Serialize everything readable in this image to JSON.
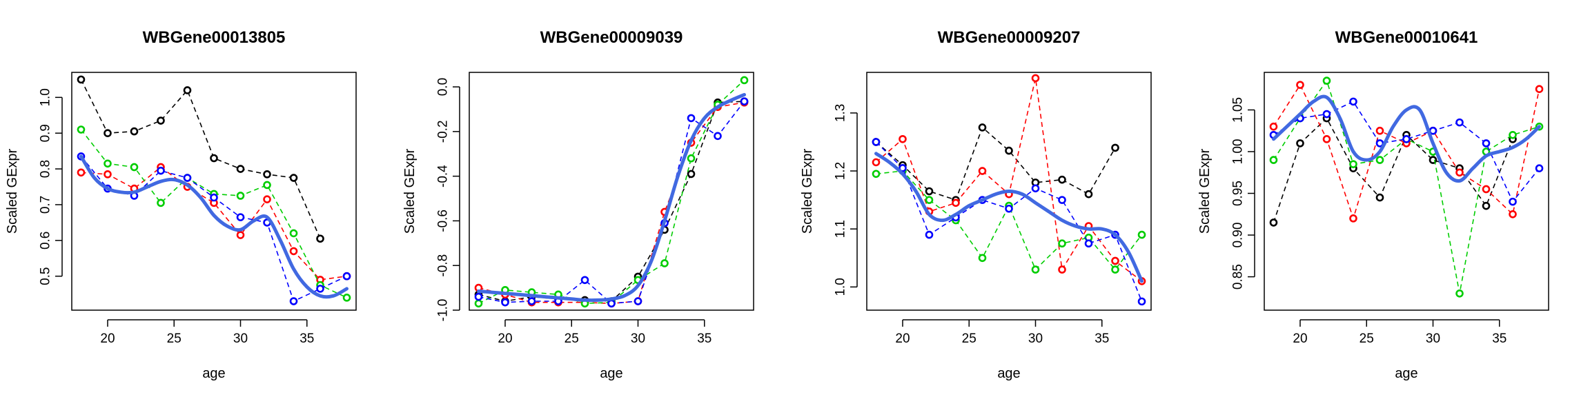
{
  "colors": {
    "series": [
      "#000000",
      "#ff0000",
      "#00cd00",
      "#0000ff"
    ],
    "smooth": "#4169e1"
  },
  "chart_data": [
    {
      "type": "line",
      "title": "WBGene00013805",
      "xlabel": "age",
      "ylabel": "Scaled GExpr",
      "xlim": [
        17.3,
        38.7
      ],
      "ylim": [
        0.405,
        1.07
      ],
      "xticks": [
        20,
        25,
        30,
        35
      ],
      "yticks": [
        0.5,
        0.6,
        0.7,
        0.8,
        0.9,
        1.0
      ],
      "ytick_labels": [
        "0.5",
        "0.6",
        "0.7",
        "0.8",
        "0.9",
        "1.0"
      ],
      "grid": false,
      "series": [
        {
          "x": [
            18,
            20,
            22,
            24,
            26,
            28,
            30,
            32,
            34,
            36
          ],
          "y": [
            1.05,
            0.9,
            0.905,
            0.935,
            1.02,
            0.83,
            0.8,
            0.785,
            0.775,
            0.605
          ]
        },
        {
          "x": [
            18,
            20,
            22,
            24,
            26,
            28,
            30,
            32,
            34,
            36,
            38
          ],
          "y": [
            0.79,
            0.785,
            0.745,
            0.805,
            0.75,
            0.705,
            0.615,
            0.715,
            0.57,
            0.49,
            0.5
          ]
        },
        {
          "x": [
            18,
            20,
            22,
            24,
            26,
            28,
            30,
            32,
            34,
            36,
            38
          ],
          "y": [
            0.91,
            0.815,
            0.805,
            0.705,
            0.775,
            0.73,
            0.725,
            0.755,
            0.62,
            0.475,
            0.44
          ]
        },
        {
          "x": [
            18,
            20,
            22,
            24,
            26,
            28,
            30,
            32,
            34,
            36,
            38
          ],
          "y": [
            0.835,
            0.745,
            0.725,
            0.795,
            0.775,
            0.72,
            0.665,
            0.65,
            0.43,
            0.465,
            0.5
          ]
        }
      ],
      "smooth": {
        "x": [
          18,
          19,
          20,
          21,
          22,
          23,
          24,
          25,
          26,
          27,
          28,
          29,
          30,
          31,
          32,
          33,
          34,
          35,
          36,
          37,
          38
        ],
        "y": [
          0.835,
          0.775,
          0.745,
          0.735,
          0.735,
          0.75,
          0.765,
          0.77,
          0.755,
          0.72,
          0.67,
          0.64,
          0.63,
          0.655,
          0.665,
          0.6,
          0.52,
          0.47,
          0.445,
          0.445,
          0.465
        ]
      }
    },
    {
      "type": "line",
      "title": "WBGene00009039",
      "xlabel": "age",
      "ylabel": "Scaled GExpr",
      "xlim": [
        17.3,
        38.7
      ],
      "ylim": [
        -1.0,
        0.065
      ],
      "xticks": [
        20,
        25,
        30,
        35
      ],
      "yticks": [
        -1.0,
        -0.8,
        -0.6,
        -0.4,
        -0.2,
        0.0
      ],
      "ytick_labels": [
        "-1.0",
        "-0.8",
        "-0.6",
        "-0.4",
        "-0.2",
        "0.0"
      ],
      "grid": false,
      "series": [
        {
          "x": [
            18,
            20,
            22,
            24,
            26,
            28,
            30,
            32,
            34,
            36,
            38
          ],
          "y": [
            -0.93,
            -0.96,
            -0.94,
            -0.95,
            -0.955,
            -0.96,
            -0.85,
            -0.64,
            -0.39,
            -0.07,
            -0.065
          ]
        },
        {
          "x": [
            18,
            20,
            22,
            24,
            26,
            28,
            30,
            32,
            34,
            36,
            38
          ],
          "y": [
            -0.9,
            -0.93,
            -0.965,
            -0.965,
            -0.965,
            -0.97,
            -0.96,
            -0.56,
            -0.25,
            -0.09,
            -0.07
          ]
        },
        {
          "x": [
            18,
            20,
            22,
            24,
            26,
            28,
            30,
            32,
            34,
            36,
            38
          ],
          "y": [
            -0.97,
            -0.91,
            -0.92,
            -0.93,
            -0.97,
            -0.965,
            -0.865,
            -0.79,
            -0.32,
            -0.08,
            0.03
          ]
        },
        {
          "x": [
            18,
            20,
            22,
            24,
            26,
            28,
            30,
            32,
            34,
            36,
            38
          ],
          "y": [
            -0.94,
            -0.965,
            -0.96,
            -0.96,
            -0.865,
            -0.97,
            -0.96,
            -0.61,
            -0.14,
            -0.22,
            -0.065
          ]
        }
      ],
      "smooth": {
        "x": [
          18,
          19,
          20,
          21,
          22,
          23,
          24,
          25,
          26,
          27,
          28,
          29,
          30,
          31,
          32,
          33,
          34,
          35,
          36,
          37,
          38
        ],
        "y": [
          -0.915,
          -0.92,
          -0.925,
          -0.93,
          -0.935,
          -0.94,
          -0.945,
          -0.95,
          -0.955,
          -0.955,
          -0.95,
          -0.935,
          -0.89,
          -0.78,
          -0.6,
          -0.4,
          -0.24,
          -0.14,
          -0.09,
          -0.06,
          -0.035
        ]
      }
    },
    {
      "type": "line",
      "title": "WBGene00009207",
      "xlabel": "age",
      "ylabel": "Scaled GExpr",
      "xlim": [
        17.3,
        38.7
      ],
      "ylim": [
        0.96,
        1.37
      ],
      "xticks": [
        20,
        25,
        30,
        35
      ],
      "yticks": [
        1.0,
        1.1,
        1.2,
        1.3
      ],
      "ytick_labels": [
        "1.0",
        "1.1",
        "1.2",
        "1.3"
      ],
      "grid": false,
      "series": [
        {
          "x": [
            18,
            20,
            22,
            24,
            26,
            28,
            30,
            32,
            34,
            36
          ],
          "y": [
            1.25,
            1.21,
            1.165,
            1.15,
            1.275,
            1.235,
            1.18,
            1.185,
            1.16,
            1.24
          ]
        },
        {
          "x": [
            18,
            20,
            22,
            24,
            26,
            28,
            30,
            32,
            34,
            36,
            38
          ],
          "y": [
            1.215,
            1.255,
            1.13,
            1.145,
            1.2,
            1.16,
            1.36,
            1.03,
            1.105,
            1.045,
            1.01
          ]
        },
        {
          "x": [
            18,
            20,
            22,
            24,
            26,
            28,
            30,
            32,
            34,
            36,
            38
          ],
          "y": [
            1.195,
            1.2,
            1.15,
            1.115,
            1.05,
            1.14,
            1.03,
            1.075,
            1.085,
            1.03,
            1.09
          ]
        },
        {
          "x": [
            18,
            20,
            22,
            24,
            26,
            28,
            30,
            32,
            34,
            36,
            38
          ],
          "y": [
            1.25,
            1.205,
            1.09,
            1.12,
            1.15,
            1.135,
            1.17,
            1.15,
            1.075,
            1.09,
            0.975
          ]
        }
      ],
      "smooth": {
        "x": [
          18,
          19,
          20,
          21,
          22,
          23,
          24,
          25,
          26,
          27,
          28,
          29,
          30,
          31,
          32,
          33,
          34,
          35,
          36,
          37,
          38
        ],
        "y": [
          1.23,
          1.215,
          1.195,
          1.165,
          1.125,
          1.115,
          1.125,
          1.14,
          1.15,
          1.16,
          1.165,
          1.16,
          1.145,
          1.13,
          1.115,
          1.105,
          1.1,
          1.1,
          1.09,
          1.06,
          1.01
        ]
      }
    },
    {
      "type": "line",
      "title": "WBGene00010641",
      "xlabel": "age",
      "ylabel": "Scaled GExpr",
      "xlim": [
        17.3,
        38.7
      ],
      "ylim": [
        0.81,
        1.095
      ],
      "xticks": [
        20,
        25,
        30,
        35
      ],
      "yticks": [
        0.85,
        0.9,
        0.95,
        1.0,
        1.05
      ],
      "ytick_labels": [
        "0.85",
        "0.90",
        "0.95",
        "1.00",
        "1.05"
      ],
      "grid": false,
      "series": [
        {
          "x": [
            18,
            20,
            22,
            24,
            26,
            28,
            30,
            32,
            34,
            36
          ],
          "y": [
            0.915,
            1.01,
            1.04,
            0.98,
            0.945,
            1.02,
            0.99,
            0.98,
            0.935,
            1.015
          ]
        },
        {
          "x": [
            18,
            20,
            22,
            24,
            26,
            28,
            30,
            32,
            34,
            36,
            38
          ],
          "y": [
            1.03,
            1.08,
            1.015,
            0.92,
            1.025,
            1.01,
            1.025,
            0.975,
            0.955,
            0.925,
            1.075
          ]
        },
        {
          "x": [
            18,
            20,
            22,
            24,
            26,
            28,
            30,
            32,
            34,
            36,
            38
          ],
          "y": [
            0.99,
            1.04,
            1.085,
            0.985,
            0.99,
            1.015,
            1.0,
            0.83,
            1.0,
            1.02,
            1.03
          ]
        },
        {
          "x": [
            18,
            20,
            22,
            24,
            26,
            28,
            30,
            32,
            34,
            36,
            38
          ],
          "y": [
            1.02,
            1.04,
            1.045,
            1.06,
            1.01,
            1.015,
            1.025,
            1.035,
            1.01,
            0.94,
            0.98
          ]
        }
      ],
      "smooth": {
        "x": [
          18,
          19,
          20,
          21,
          22,
          23,
          24,
          25,
          26,
          27,
          28,
          29,
          30,
          31,
          32,
          33,
          34,
          35,
          36,
          37,
          38
        ],
        "y": [
          1.015,
          1.03,
          1.045,
          1.06,
          1.065,
          1.04,
          1.0,
          0.99,
          1.0,
          1.03,
          1.05,
          1.05,
          1.01,
          0.975,
          0.965,
          0.98,
          0.995,
          1.0,
          1.005,
          1.015,
          1.03
        ]
      }
    }
  ]
}
